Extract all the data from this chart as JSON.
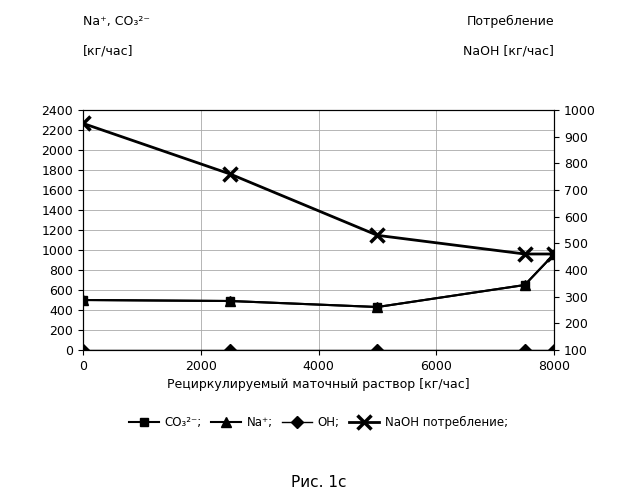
{
  "title_left_line1": "Na⁺, CO₃²⁻",
  "title_left_line2": "[кг/час]",
  "title_right_line1": "Потребление",
  "title_right_line2": "NaOH [кг/час]",
  "xlabel": "Рециркулируемый маточный раствор [кг/час]",
  "caption": "Рис. 1c",
  "xlim": [
    0,
    8000
  ],
  "ylim_left": [
    0,
    2400
  ],
  "ylim_right": [
    100,
    1000
  ],
  "xticks": [
    0,
    2000,
    4000,
    6000,
    8000
  ],
  "yticks_left": [
    0,
    200,
    400,
    600,
    800,
    1000,
    1200,
    1400,
    1600,
    1800,
    2000,
    2200,
    2400
  ],
  "yticks_right": [
    100,
    200,
    300,
    400,
    500,
    600,
    700,
    800,
    900,
    1000
  ],
  "co3_x": [
    0,
    2500,
    5000,
    7500,
    8000
  ],
  "co3_y": [
    500,
    490,
    430,
    650,
    960
  ],
  "na_x": [
    0,
    2500,
    5000,
    7500,
    8000
  ],
  "na_y": [
    500,
    490,
    430,
    650,
    960
  ],
  "oh_x": [
    0,
    2500,
    5000,
    7500,
    8000
  ],
  "oh_y": [
    100,
    100,
    100,
    100,
    100
  ],
  "naoh_x": [
    0,
    2500,
    5000,
    7500,
    8000
  ],
  "naoh_y": [
    950,
    760,
    530,
    460,
    460
  ],
  "legend_co3": "CO₃²⁻;",
  "legend_na": "Na⁺;",
  "legend_oh": "OH;",
  "legend_naoh": "NaOH потребление;",
  "line_color": "#000000",
  "bg_color": "#ffffff",
  "grid_color": "#aaaaaa"
}
